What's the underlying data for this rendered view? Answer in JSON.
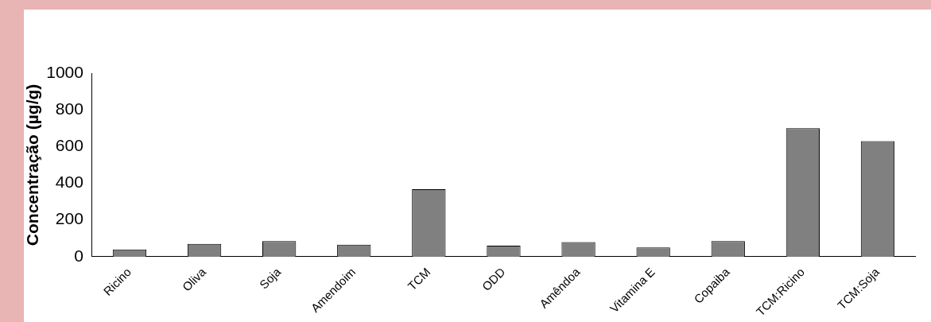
{
  "chart_data": {
    "type": "bar",
    "ylabel": "Concentração (µg/g)",
    "categories": [
      "Ricino",
      "Oliva",
      "Soja",
      "Amendoim",
      "TCM",
      "ODD",
      "Amêndoa",
      "Vitamina E",
      "Copaiba",
      "TCM:Ricino",
      "TCM:Soja"
    ],
    "values": [
      40,
      70,
      85,
      65,
      368,
      60,
      80,
      50,
      85,
      700,
      630
    ],
    "color": "#808080",
    "ylim": [
      0,
      1000
    ],
    "yticks": [
      0,
      200,
      400,
      600,
      800,
      1000
    ],
    "grid": false,
    "legend": false
  }
}
